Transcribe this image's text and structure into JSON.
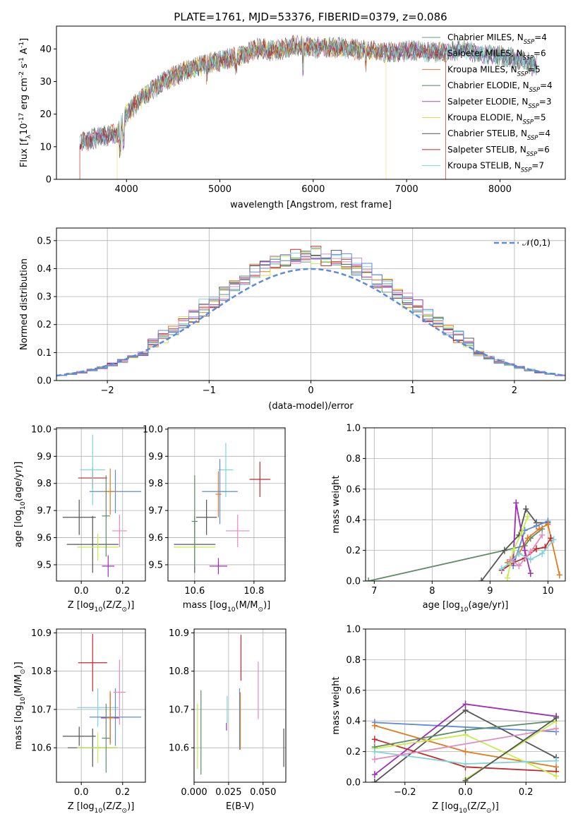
{
  "figure_title": "PLATE=1761, MJD=53376, FIBERID=0379, z=0.086",
  "colors": {
    "chabrier_miles": "#6b9e72",
    "salpeter_miles": "#8a8a8a",
    "kroupa_miles": "#e07b39",
    "chabrier_elodie": "#4e7f57",
    "salpeter_elodie": "#9b4fb5",
    "kroupa_elodie": "#e6d84a",
    "chabrier_stelib": "#555555",
    "salpeter_stelib": "#c0282d",
    "kroupa_stelib": "#7fd3dc",
    "blue": "#5b8bd9",
    "pink": "#e58ac0",
    "green": "#5e8c6a",
    "lime": "#c6ec4d",
    "purple": "#9b30b6",
    "orange": "#e07b1f",
    "dark": "#555555",
    "red": "#c0282d",
    "cyan": "#7fd3dc"
  },
  "chart_data": [
    {
      "id": "spectrum",
      "type": "line",
      "xlabel": "wavelength [Angstrom, rest frame]",
      "ylabel": "Flux [f$_\\lambda$10$^{-17}$ erg cm$^{-2}$ s$^{-1}$ A$^{-1}$]",
      "xlim": [
        3250,
        8700
      ],
      "ylim": [
        0,
        47
      ],
      "xticks": [
        "4000",
        "5000",
        "6000",
        "7000",
        "8000"
      ],
      "yticks": [
        "0",
        "10",
        "20",
        "30",
        "40"
      ],
      "legend_position": "top-right",
      "continuum_x": [
        3500,
        3700,
        3900,
        4000,
        4200,
        4400,
        4600,
        4800,
        5000,
        5200,
        5400,
        5600,
        5800,
        6000,
        6200,
        6400,
        6600,
        6800,
        7000,
        7200,
        7400,
        7600,
        7800,
        8000,
        8200,
        8350
      ],
      "continuum_y": [
        11,
        13,
        14,
        20,
        26,
        30,
        33,
        35,
        36.5,
        37.5,
        40,
        39.5,
        41,
        40.5,
        40.5,
        40,
        39.5,
        39,
        39.5,
        39,
        39,
        40,
        38.5,
        38,
        37,
        35
      ],
      "series": [
        {
          "name": "Chabrier MILES, N$_{SSP}$=4",
          "color_key": "chabrier_miles"
        },
        {
          "name": "Salpeter MILES, N$_{SSP}$=6",
          "color_key": "salpeter_miles"
        },
        {
          "name": "Kroupa MILES, N$_{SSP}$=5",
          "color_key": "kroupa_miles"
        },
        {
          "name": "Chabrier ELODIE, N$_{SSP}$=4",
          "color_key": "chabrier_elodie"
        },
        {
          "name": "Salpeter ELODIE, N$_{SSP}$=3",
          "color_key": "salpeter_elodie"
        },
        {
          "name": "Kroupa ELODIE, N$_{SSP}$=5",
          "color_key": "kroupa_elodie"
        },
        {
          "name": "Chabrier STELIB, N$_{SSP}$=4",
          "color_key": "chabrier_stelib"
        },
        {
          "name": "Salpeter STELIB, N$_{SSP}$=6",
          "color_key": "salpeter_stelib"
        },
        {
          "name": "Kroupa STELIB, N$_{SSP}$=7",
          "color_key": "kroupa_stelib"
        }
      ]
    },
    {
      "id": "residuals",
      "type": "line",
      "xlabel": "(data-model)/error",
      "ylabel": "Normed distribution",
      "xlim": [
        -2.5,
        2.5
      ],
      "ylim": [
        0,
        0.545
      ],
      "xticks": [
        "−2",
        "−1",
        "0",
        "1",
        "2"
      ],
      "yticks": [
        "0.0",
        "0.1",
        "0.2",
        "0.3",
        "0.4",
        "0.5"
      ],
      "grid": true,
      "legend_position": "top-right",
      "gaussian_label": "$\\mathcal{N}(0,1)$",
      "bin_width": 0.1,
      "histogram_color_keys": [
        "chabrier_miles",
        "orange",
        "purple",
        "lime",
        "dark",
        "red",
        "cyan",
        "pink",
        "blue"
      ]
    },
    {
      "id": "age_vs_Z",
      "type": "scatter",
      "xlabel": "Z [log$_{10}$(Z/Z$_\\odot$)]",
      "ylabel": "age  [log$_{10}$(age/yr)]",
      "xlim": [
        -0.12,
        0.31
      ],
      "ylim": [
        9.44,
        10.005
      ],
      "xticks": [
        "0.0",
        "0.2"
      ],
      "yticks": [
        "9.5",
        "9.6",
        "9.7",
        "9.8",
        "9.9",
        "10.0"
      ],
      "grid": true,
      "points": [
        {
          "x": -0.01,
          "y": 9.675,
          "xerr": 0.08,
          "yerr": 0.065,
          "color_key": "dark"
        },
        {
          "x": 0.055,
          "y": 9.575,
          "xerr": 0.125,
          "yerr": 0.105,
          "color_key": "dark"
        },
        {
          "x": 0.055,
          "y": 9.82,
          "xerr": 0.07,
          "yerr": 0.04,
          "color_key": "red"
        },
        {
          "x": 0.055,
          "y": 9.85,
          "xerr": 0.06,
          "yerr": 0.13,
          "color_key": "cyan"
        },
        {
          "x": 0.165,
          "y": 9.77,
          "xerr": 0.125,
          "yerr": 0.08,
          "color_key": "blue"
        },
        {
          "x": 0.13,
          "y": 9.495,
          "xerr": 0.03,
          "yerr": 0.04,
          "color_key": "purple"
        },
        {
          "x": 0.14,
          "y": 9.77,
          "xerr": 0.03,
          "yerr": 0.085,
          "color_key": "orange"
        },
        {
          "x": 0.185,
          "y": 9.625,
          "xerr": 0.035,
          "yerr": 0.06,
          "color_key": "pink"
        },
        {
          "x": 0.08,
          "y": 9.565,
          "xerr": 0.1,
          "yerr": 0.05,
          "color_key": "lime"
        },
        {
          "x": 0.12,
          "y": 9.68,
          "xerr": 0.02,
          "yerr": 0.15,
          "color_key": "green"
        }
      ]
    },
    {
      "id": "age_vs_mass",
      "type": "scatter",
      "xlabel": "mass [log$_{10}$(M/M$_\\odot$)]",
      "ylabel": "",
      "xlim": [
        10.51,
        10.905
      ],
      "ylim": [
        9.44,
        10.005
      ],
      "xticks": [
        "10.6",
        "10.8"
      ],
      "yticks": [
        "9.5",
        "9.6",
        "9.7",
        "9.8",
        "9.9",
        "10.0"
      ],
      "grid": true,
      "points": [
        {
          "x": 10.64,
          "y": 9.675,
          "xerr": 0.035,
          "yerr": 0.065,
          "color_key": "dark"
        },
        {
          "x": 10.6,
          "y": 9.575,
          "xerr": 0.07,
          "yerr": 0.105,
          "color_key": "dark"
        },
        {
          "x": 10.82,
          "y": 9.815,
          "xerr": 0.035,
          "yerr": 0.065,
          "color_key": "red"
        },
        {
          "x": 10.705,
          "y": 9.85,
          "xerr": 0.025,
          "yerr": 0.1,
          "color_key": "cyan"
        },
        {
          "x": 10.685,
          "y": 9.77,
          "xerr": 0.06,
          "yerr": 0.12,
          "color_key": "blue"
        },
        {
          "x": 10.68,
          "y": 9.495,
          "xerr": 0.03,
          "yerr": 0.03,
          "color_key": "purple"
        },
        {
          "x": 10.68,
          "y": 9.76,
          "xerr": 0.01,
          "yerr": 0.085,
          "color_key": "orange"
        },
        {
          "x": 10.745,
          "y": 9.625,
          "xerr": 0.04,
          "yerr": 0.06,
          "color_key": "pink"
        },
        {
          "x": 10.6,
          "y": 9.565,
          "xerr": 0.07,
          "yerr": 0.05,
          "color_key": "lime"
        },
        {
          "x": 10.6,
          "y": 9.66,
          "xerr": 0.01,
          "yerr": 0.17,
          "color_key": "green"
        }
      ]
    },
    {
      "id": "massweight_vs_age",
      "type": "line",
      "xlabel": "age  [log$_{10}$(age/yr)]",
      "ylabel": "mass weight",
      "xlim": [
        6.85,
        10.3
      ],
      "ylim": [
        0,
        1
      ],
      "xticks": [
        "7",
        "8",
        "9",
        "10"
      ],
      "yticks": [
        "0.0",
        "0.2",
        "0.4",
        "0.6",
        "0.8",
        "1.0"
      ],
      "grid": true,
      "series": [
        {
          "color_key": "green",
          "x": [
            6.9,
            9.6,
            9.7,
            9.9
          ],
          "y": [
            0.0,
            0.23,
            0.28,
            0.34
          ]
        },
        {
          "color_key": "dark",
          "x": [
            8.85,
            9.25,
            9.5,
            9.62,
            9.8,
            10.0
          ],
          "y": [
            0.0,
            0.2,
            0.3,
            0.47,
            0.38,
            0.38
          ]
        },
        {
          "color_key": "blue",
          "x": [
            9.4,
            9.6,
            9.8,
            10.0
          ],
          "y": [
            0.1,
            0.33,
            0.36,
            0.39
          ]
        },
        {
          "color_key": "orange",
          "x": [
            9.3,
            9.5,
            9.65,
            9.85,
            10.0,
            10.2
          ],
          "y": [
            0.12,
            0.18,
            0.28,
            0.34,
            0.37,
            0.04
          ]
        },
        {
          "color_key": "purple",
          "x": [
            9.4,
            9.45,
            9.6,
            9.7
          ],
          "y": [
            0.14,
            0.51,
            0.2,
            0.05
          ]
        },
        {
          "color_key": "red",
          "x": [
            9.2,
            9.4,
            9.6,
            9.8,
            9.95,
            10.05
          ],
          "y": [
            0.07,
            0.12,
            0.15,
            0.21,
            0.22,
            0.28
          ]
        },
        {
          "color_key": "cyan",
          "x": [
            9.2,
            9.35,
            9.5,
            9.7,
            9.9,
            10.1
          ],
          "y": [
            0.08,
            0.12,
            0.18,
            0.14,
            0.18,
            0.27
          ]
        },
        {
          "color_key": "lime",
          "x": [
            9.3,
            9.4,
            9.55,
            9.65
          ],
          "y": [
            0.02,
            0.2,
            0.32,
            0.42
          ]
        },
        {
          "color_key": "pink",
          "x": [
            9.35,
            9.5,
            9.7,
            9.9
          ],
          "y": [
            0.14,
            0.1,
            0.19,
            0.3
          ]
        }
      ]
    },
    {
      "id": "mass_vs_Z",
      "type": "scatter",
      "xlabel": "Z [log$_{10}$(Z/Z$_\\odot$)]",
      "ylabel": "mass [log$_{10}$(M/M$_\\odot$)]",
      "xlim": [
        -0.12,
        0.31
      ],
      "ylim": [
        10.51,
        10.91
      ],
      "xticks": [
        "0.0",
        "0.2"
      ],
      "yticks": [
        "10.6",
        "10.7",
        "10.8",
        "10.9"
      ],
      "grid": true,
      "points": [
        {
          "x": -0.01,
          "y": 10.63,
          "xerr": 0.08,
          "yerr": 0.025,
          "color_key": "dark"
        },
        {
          "x": 0.055,
          "y": 10.6,
          "xerr": 0.12,
          "yerr": 0.05,
          "color_key": "dark"
        },
        {
          "x": 0.055,
          "y": 10.822,
          "xerr": 0.07,
          "yerr": 0.075,
          "color_key": "red"
        },
        {
          "x": 0.08,
          "y": 10.705,
          "xerr": 0.1,
          "yerr": 0.05,
          "color_key": "cyan"
        },
        {
          "x": 0.165,
          "y": 10.68,
          "xerr": 0.125,
          "yerr": 0.075,
          "color_key": "blue"
        },
        {
          "x": 0.14,
          "y": 10.678,
          "xerr": 0.045,
          "yerr": 0.065,
          "color_key": "purple"
        },
        {
          "x": 0.14,
          "y": 10.678,
          "xerr": 0.02,
          "yerr": 0.07,
          "color_key": "orange"
        },
        {
          "x": 0.185,
          "y": 10.745,
          "xerr": 0.03,
          "yerr": 0.085,
          "color_key": "pink"
        },
        {
          "x": 0.08,
          "y": 10.6,
          "xerr": 0.1,
          "yerr": 0.04,
          "color_key": "lime"
        },
        {
          "x": 0.12,
          "y": 10.625,
          "xerr": 0.02,
          "yerr": 0.09,
          "color_key": "green"
        }
      ]
    },
    {
      "id": "mass_vs_ebv",
      "type": "scatter",
      "xlabel": "E(B-V)",
      "ylabel": "",
      "xlim": [
        0.0,
        0.0665
      ],
      "ylim": [
        10.51,
        10.91
      ],
      "xticks": [
        "0.000",
        "0.025",
        "0.050"
      ],
      "yticks": [
        "10.6",
        "10.7",
        "10.8",
        "10.9"
      ],
      "grid": true,
      "points": [
        {
          "x": 0.005,
          "y": 10.64,
          "xerr": 0,
          "yerr": 0.11,
          "color_key": "green"
        },
        {
          "x": 0.0025,
          "y": 10.63,
          "xerr": 0,
          "yerr": 0.085,
          "color_key": "lime"
        },
        {
          "x": 0.0235,
          "y": 10.655,
          "xerr": 0,
          "yerr": 0.01,
          "color_key": "purple"
        },
        {
          "x": 0.024,
          "y": 10.7,
          "xerr": 0,
          "yerr": 0.035,
          "color_key": "cyan"
        },
        {
          "x": 0.033,
          "y": 10.675,
          "xerr": 0,
          "yerr": 0.08,
          "color_key": "blue"
        },
        {
          "x": 0.0335,
          "y": 10.67,
          "xerr": 0,
          "yerr": 0.075,
          "color_key": "orange"
        },
        {
          "x": 0.034,
          "y": 10.835,
          "xerr": 0,
          "yerr": 0.06,
          "color_key": "red"
        },
        {
          "x": 0.0465,
          "y": 10.75,
          "xerr": 0,
          "yerr": 0.075,
          "color_key": "pink"
        },
        {
          "x": 0.065,
          "y": 10.6,
          "xerr": 0,
          "yerr": 0.05,
          "color_key": "dark"
        }
      ]
    },
    {
      "id": "massweight_vs_Z",
      "type": "line",
      "xlabel": "Z [log$_{10}$(Z/Z$_\\odot$)]",
      "ylabel": "mass weight",
      "xlim": [
        -0.33,
        0.33
      ],
      "ylim": [
        0,
        1
      ],
      "xticks": [
        "−0.2",
        "0.0",
        "0.2"
      ],
      "yticks": [
        "0.0",
        "0.2",
        "0.4",
        "0.6",
        "0.8",
        "1.0"
      ],
      "grid": true,
      "series": [
        {
          "color_key": "blue",
          "x": [
            -0.3,
            0.3
          ],
          "y": [
            0.39,
            0.33
          ]
        },
        {
          "color_key": "purple",
          "x": [
            -0.3,
            0.0,
            0.3
          ],
          "y": [
            0.05,
            0.51,
            0.43
          ]
        },
        {
          "color_key": "dark",
          "x": [
            -0.3,
            0.0,
            0.3
          ],
          "y": [
            0.0,
            0.47,
            0.16
          ]
        },
        {
          "color_key": "orange",
          "x": [
            -0.3,
            0.0,
            0.3
          ],
          "y": [
            0.37,
            0.2,
            0.1
          ]
        },
        {
          "color_key": "red",
          "x": [
            -0.3,
            0.0,
            0.3
          ],
          "y": [
            0.28,
            0.1,
            0.07
          ]
        },
        {
          "color_key": "lime",
          "x": [
            -0.3,
            0.0,
            0.3
          ],
          "y": [
            0.22,
            0.31,
            0.04
          ]
        },
        {
          "color_key": "green",
          "x": [
            -0.3,
            0.0,
            0.3
          ],
          "y": [
            0.23,
            0.34,
            0.4
          ]
        },
        {
          "color_key": "cyan",
          "x": [
            -0.3,
            0.0,
            0.3
          ],
          "y": [
            0.2,
            0.12,
            0.14
          ]
        },
        {
          "color_key": "pink",
          "x": [
            -0.3,
            0.3
          ],
          "y": [
            0.15,
            0.35
          ]
        },
        {
          "color_key": "lime",
          "x": [
            0.0,
            0.3
          ],
          "y": [
            0.02,
            0.4
          ]
        },
        {
          "color_key": "dark",
          "x": [
            0.0,
            0.3
          ],
          "y": [
            0.01,
            0.42
          ]
        }
      ]
    }
  ]
}
